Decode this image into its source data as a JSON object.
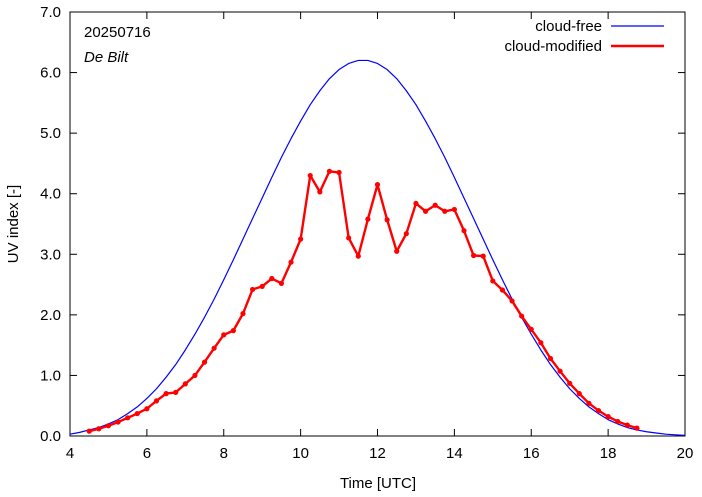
{
  "chart_data": {
    "type": "line",
    "xlabel": "Time  [UTC]",
    "ylabel": "UV index  [-]",
    "xlim": [
      4,
      20
    ],
    "ylim": [
      0,
      7
    ],
    "x_ticks": [
      4,
      6,
      8,
      10,
      12,
      14,
      16,
      18,
      20
    ],
    "x_tick_labels": [
      "4",
      "6",
      "8",
      "10",
      "12",
      "14",
      "16",
      "18",
      "20"
    ],
    "y_ticks": [
      0,
      1,
      2,
      3,
      4,
      5,
      6,
      7
    ],
    "y_tick_labels": [
      "0.0",
      "1.0",
      "2.0",
      "3.0",
      "4.0",
      "5.0",
      "6.0",
      "7.0"
    ],
    "grid": false,
    "legend_position": "top-right",
    "annotations": [
      "20250716",
      "De Bilt"
    ],
    "series": [
      {
        "name": "cloud-free",
        "color": "#0000ff",
        "markers": false,
        "x": [
          4.0,
          4.25,
          4.5,
          4.75,
          5.0,
          5.25,
          5.5,
          5.75,
          6.0,
          6.25,
          6.5,
          6.75,
          7.0,
          7.25,
          7.5,
          7.75,
          8.0,
          8.25,
          8.5,
          8.75,
          9.0,
          9.25,
          9.5,
          9.75,
          10.0,
          10.25,
          10.5,
          10.75,
          11.0,
          11.25,
          11.5,
          11.75,
          12.0,
          12.25,
          12.5,
          12.75,
          13.0,
          13.25,
          13.5,
          13.75,
          14.0,
          14.25,
          14.5,
          14.75,
          15.0,
          15.25,
          15.5,
          15.75,
          16.0,
          16.25,
          16.5,
          16.75,
          17.0,
          17.25,
          17.5,
          17.75,
          18.0,
          18.25,
          18.5,
          18.75,
          19.0,
          19.25,
          19.5,
          19.75,
          20.0
        ],
        "y": [
          0.03,
          0.06,
          0.1,
          0.14,
          0.2,
          0.27,
          0.37,
          0.48,
          0.62,
          0.78,
          0.97,
          1.18,
          1.42,
          1.68,
          1.96,
          2.26,
          2.58,
          2.91,
          3.25,
          3.59,
          3.93,
          4.27,
          4.6,
          4.91,
          5.2,
          5.47,
          5.7,
          5.9,
          6.05,
          6.15,
          6.2,
          6.2,
          6.15,
          6.05,
          5.9,
          5.7,
          5.47,
          5.2,
          4.91,
          4.6,
          4.27,
          3.93,
          3.59,
          3.25,
          2.91,
          2.58,
          2.26,
          1.96,
          1.68,
          1.42,
          1.18,
          0.97,
          0.78,
          0.62,
          0.48,
          0.37,
          0.27,
          0.2,
          0.14,
          0.1,
          0.07,
          0.05,
          0.03,
          0.02,
          0.01
        ]
      },
      {
        "name": "cloud-modified",
        "color": "#ff0000",
        "markers": true,
        "x": [
          4.5,
          4.75,
          5.0,
          5.25,
          5.5,
          5.75,
          6.0,
          6.25,
          6.5,
          6.75,
          7.0,
          7.25,
          7.5,
          7.75,
          8.0,
          8.25,
          8.5,
          8.75,
          9.0,
          9.25,
          9.5,
          9.75,
          10.0,
          10.25,
          10.5,
          10.75,
          11.0,
          11.25,
          11.5,
          11.75,
          12.0,
          12.25,
          12.5,
          12.75,
          13.0,
          13.25,
          13.5,
          13.75,
          14.0,
          14.25,
          14.5,
          14.75,
          15.0,
          15.25,
          15.5,
          15.75,
          16.0,
          16.25,
          16.5,
          16.75,
          17.0,
          17.25,
          17.5,
          17.75,
          18.0,
          18.25,
          18.5,
          18.75
        ],
        "y": [
          0.08,
          0.12,
          0.17,
          0.23,
          0.3,
          0.37,
          0.45,
          0.58,
          0.7,
          0.72,
          0.86,
          1.0,
          1.22,
          1.45,
          1.67,
          1.74,
          2.02,
          2.42,
          2.47,
          2.6,
          2.52,
          2.87,
          3.25,
          4.3,
          4.03,
          4.37,
          4.35,
          3.27,
          2.97,
          3.58,
          4.15,
          3.57,
          3.05,
          3.34,
          3.84,
          3.71,
          3.81,
          3.71,
          3.74,
          3.39,
          2.98,
          2.97,
          2.56,
          2.41,
          2.23,
          1.98,
          1.76,
          1.54,
          1.28,
          1.07,
          0.87,
          0.7,
          0.54,
          0.42,
          0.32,
          0.24,
          0.18,
          0.13
        ]
      }
    ]
  }
}
